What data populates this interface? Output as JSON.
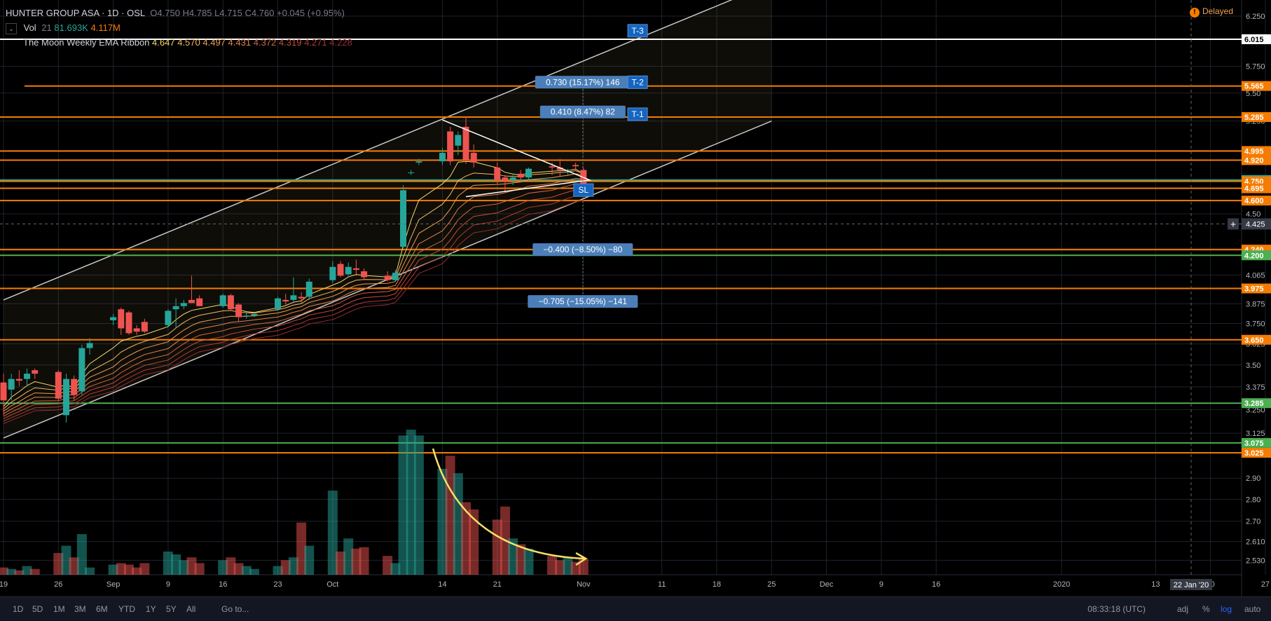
{
  "header": {
    "symbol": "HUNTER GROUP ASA · 1D · OSL",
    "ohlc": "O4.750  H4.785  L4.715  C4.760  +0.045 (+0.95%)",
    "vol_label": "Vol",
    "vol_len": "21",
    "vol_val1": "81.693K",
    "vol_val2": "4.117M",
    "ema_label": "The Moon Weekly EMA Ribbon",
    "ema_vals": [
      "4.647",
      "4.570",
      "4.497",
      "4.431",
      "4.372",
      "4.319",
      "4.271",
      "4.228"
    ],
    "collapse": "⌄",
    "delayed_icon": "!",
    "delayed": "Delayed"
  },
  "bottom_toolbar": {
    "ranges": [
      "1D",
      "5D",
      "1M",
      "3M",
      "6M",
      "YTD",
      "1Y",
      "5Y",
      "All"
    ],
    "goto": "Go to...",
    "time": "08:33:18 (UTC)",
    "opts": [
      "adj",
      "%",
      "log",
      "auto"
    ],
    "icon": "gear-icon"
  },
  "colors": {
    "up": "#26a69a",
    "down": "#ef5350",
    "orange": "#f57c00",
    "green": "#4caf50",
    "label_blue": "#4c7fb9",
    "target_blue": "#1565c0",
    "arrow": "#f5e06a"
  },
  "chart_data": {
    "type": "candlestick",
    "symbol": "HUNTER GROUP ASA",
    "interval": "1D",
    "exchange": "OSL",
    "scale": "log",
    "y_range": [
      2.47,
      6.42
    ],
    "y_ticks": [
      6.25,
      5.75,
      5.5,
      5.25,
      5,
      4.75,
      4.5,
      4.25,
      4.065,
      3.875,
      3.75,
      3.625,
      3.5,
      3.375,
      3.25,
      3.125,
      2.9,
      2.8,
      2.7,
      2.61,
      2.53
    ],
    "x_ticks": [
      {
        "label": "19",
        "date": "2019-08-19"
      },
      {
        "label": "26",
        "date": "2019-08-26"
      },
      {
        "label": "Sep",
        "date": "2019-09-02"
      },
      {
        "label": "9",
        "date": "2019-09-09"
      },
      {
        "label": "16",
        "date": "2019-09-16"
      },
      {
        "label": "23",
        "date": "2019-09-23"
      },
      {
        "label": "Oct",
        "date": "2019-09-30"
      },
      {
        "label": "14",
        "date": "2019-10-14"
      },
      {
        "label": "21",
        "date": "2019-10-21"
      },
      {
        "label": "Nov",
        "date": "2019-11-01"
      },
      {
        "label": "11",
        "date": "2019-11-11"
      },
      {
        "label": "18",
        "date": "2019-11-18"
      },
      {
        "label": "25",
        "date": "2019-11-25"
      },
      {
        "label": "Dec",
        "date": "2019-12-02"
      },
      {
        "label": "9",
        "date": "2019-12-09"
      },
      {
        "label": "16",
        "date": "2019-12-16"
      },
      {
        "label": "2020",
        "date": "2020-01-01"
      },
      {
        "label": "13",
        "date": "2020-01-13"
      },
      {
        "label": "20",
        "date": "2020-01-20"
      },
      {
        "label": "27",
        "date": "2020-01-27"
      }
    ],
    "cursor_date": "22 Jan '20",
    "cursor_price": "4.425",
    "candles": [
      {
        "date": "2019-08-19",
        "o": 3.4,
        "h": 3.45,
        "l": 3.22,
        "c": 3.3
      },
      {
        "date": "2019-08-20",
        "o": 3.36,
        "h": 3.45,
        "l": 3.3,
        "c": 3.42
      },
      {
        "date": "2019-08-21",
        "o": 3.42,
        "h": 3.47,
        "l": 3.38,
        "c": 3.41
      },
      {
        "date": "2019-08-22",
        "o": 3.42,
        "h": 3.48,
        "l": 3.38,
        "c": 3.45
      },
      {
        "date": "2019-08-23",
        "o": 3.47,
        "h": 3.48,
        "l": 3.42,
        "c": 3.45
      },
      {
        "date": "2019-08-26",
        "o": 3.46,
        "h": 3.47,
        "l": 3.3,
        "c": 3.31
      },
      {
        "date": "2019-08-27",
        "o": 3.22,
        "h": 3.45,
        "l": 3.18,
        "c": 3.42
      },
      {
        "date": "2019-08-28",
        "o": 3.42,
        "h": 3.44,
        "l": 3.3,
        "c": 3.33
      },
      {
        "date": "2019-08-29",
        "o": 3.35,
        "h": 3.62,
        "l": 3.33,
        "c": 3.6
      },
      {
        "date": "2019-08-30",
        "o": 3.6,
        "h": 3.66,
        "l": 3.56,
        "c": 3.63
      },
      {
        "date": "2019-09-02",
        "o": 3.77,
        "h": 3.81,
        "l": 3.74,
        "c": 3.79
      },
      {
        "date": "2019-09-03",
        "o": 3.84,
        "h": 3.85,
        "l": 3.68,
        "c": 3.72
      },
      {
        "date": "2019-09-04",
        "o": 3.82,
        "h": 3.83,
        "l": 3.68,
        "c": 3.69
      },
      {
        "date": "2019-09-05",
        "o": 3.72,
        "h": 3.74,
        "l": 3.68,
        "c": 3.7
      },
      {
        "date": "2019-09-06",
        "o": 3.76,
        "h": 3.78,
        "l": 3.69,
        "c": 3.7
      },
      {
        "date": "2019-09-09",
        "o": 3.74,
        "h": 3.84,
        "l": 3.73,
        "c": 3.83
      },
      {
        "date": "2019-09-10",
        "o": 3.84,
        "h": 3.91,
        "l": 3.72,
        "c": 3.86
      },
      {
        "date": "2019-09-11",
        "o": 3.86,
        "h": 3.9,
        "l": 3.84,
        "c": 3.88
      },
      {
        "date": "2019-09-12",
        "o": 3.9,
        "h": 4.06,
        "l": 3.88,
        "c": 3.88
      },
      {
        "date": "2019-09-13",
        "o": 3.91,
        "h": 3.93,
        "l": 3.86,
        "c": 3.86
      },
      {
        "date": "2019-09-16",
        "o": 3.86,
        "h": 3.94,
        "l": 3.85,
        "c": 3.93
      },
      {
        "date": "2019-09-17",
        "o": 3.93,
        "h": 3.94,
        "l": 3.83,
        "c": 3.84
      },
      {
        "date": "2019-09-18",
        "o": 3.87,
        "h": 3.88,
        "l": 3.76,
        "c": 3.79
      },
      {
        "date": "2019-09-19",
        "o": 3.8,
        "h": 3.82,
        "l": 3.78,
        "c": 3.8
      },
      {
        "date": "2019-09-20",
        "o": 3.8,
        "h": 3.82,
        "l": 3.79,
        "c": 3.81
      },
      {
        "date": "2019-09-23",
        "o": 3.84,
        "h": 3.92,
        "l": 3.83,
        "c": 3.91
      },
      {
        "date": "2019-09-24",
        "o": 3.9,
        "h": 3.94,
        "l": 3.87,
        "c": 3.89
      },
      {
        "date": "2019-09-25",
        "o": 3.9,
        "h": 4.05,
        "l": 3.88,
        "c": 3.93
      },
      {
        "date": "2019-09-26",
        "o": 3.92,
        "h": 3.95,
        "l": 3.88,
        "c": 3.91
      },
      {
        "date": "2019-09-27",
        "o": 3.92,
        "h": 4.04,
        "l": 3.9,
        "c": 4.02
      },
      {
        "date": "2019-09-30",
        "o": 4.03,
        "h": 4.16,
        "l": 4.01,
        "c": 4.12
      },
      {
        "date": "2019-10-01",
        "o": 4.14,
        "h": 4.16,
        "l": 4.05,
        "c": 4.06
      },
      {
        "date": "2019-10-02",
        "o": 4.07,
        "h": 4.15,
        "l": 4.06,
        "c": 4.12
      },
      {
        "date": "2019-10-03",
        "o": 4.11,
        "h": 4.17,
        "l": 4.06,
        "c": 4.1
      },
      {
        "date": "2019-10-04",
        "o": 4.09,
        "h": 4.11,
        "l": 4.03,
        "c": 4.05
      },
      {
        "date": "2019-10-07",
        "o": 4.06,
        "h": 4.09,
        "l": 4.02,
        "c": 4.03
      },
      {
        "date": "2019-10-08",
        "o": 4.03,
        "h": 4.1,
        "l": 4.02,
        "c": 4.08
      },
      {
        "date": "2019-10-09",
        "o": 4.26,
        "h": 4.72,
        "l": 4.25,
        "c": 4.68
      },
      {
        "date": "2019-10-10",
        "o": 4.82,
        "h": 4.84,
        "l": 4.8,
        "c": 4.82
      },
      {
        "date": "2019-10-11",
        "o": 4.9,
        "h": 4.93,
        "l": 4.88,
        "c": 4.91
      },
      {
        "date": "2019-10-14",
        "o": 4.91,
        "h": 5.02,
        "l": 4.88,
        "c": 4.98
      },
      {
        "date": "2019-10-15",
        "o": 5.16,
        "h": 5.2,
        "l": 4.88,
        "c": 4.91
      },
      {
        "date": "2019-10-16",
        "o": 5.04,
        "h": 5.16,
        "l": 4.96,
        "c": 5.13
      },
      {
        "date": "2019-10-17",
        "o": 5.2,
        "h": 5.29,
        "l": 4.89,
        "c": 4.92
      },
      {
        "date": "2019-10-18",
        "o": 4.98,
        "h": 5.05,
        "l": 4.86,
        "c": 4.9
      },
      {
        "date": "2019-10-21",
        "o": 4.86,
        "h": 4.9,
        "l": 4.73,
        "c": 4.76
      },
      {
        "date": "2019-10-22",
        "o": 4.78,
        "h": 4.8,
        "l": 4.66,
        "c": 4.75
      },
      {
        "date": "2019-10-23",
        "o": 4.76,
        "h": 4.8,
        "l": 4.72,
        "c": 4.78
      },
      {
        "date": "2019-10-24",
        "o": 4.81,
        "h": 4.84,
        "l": 4.74,
        "c": 4.78
      },
      {
        "date": "2019-10-25",
        "o": 4.78,
        "h": 4.86,
        "l": 4.76,
        "c": 4.85
      },
      {
        "date": "2019-10-28",
        "o": 4.87,
        "h": 4.9,
        "l": 4.8,
        "c": 4.86
      },
      {
        "date": "2019-10-29",
        "o": 4.86,
        "h": 4.93,
        "l": 4.79,
        "c": 4.84
      },
      {
        "date": "2019-10-30",
        "o": 4.84,
        "h": 4.85,
        "l": 4.8,
        "c": 4.84
      },
      {
        "date": "2019-10-31",
        "o": 4.88,
        "h": 4.9,
        "l": 4.83,
        "c": 4.87
      },
      {
        "date": "2019-11-01",
        "o": 4.84,
        "h": 4.86,
        "l": 4.71,
        "c": 4.73
      }
    ],
    "volume_relative": [
      0.05,
      0.04,
      0.03,
      0.06,
      0.04,
      0.15,
      0.2,
      0.12,
      0.28,
      0.05,
      0.07,
      0.08,
      0.07,
      0.05,
      0.08,
      0.16,
      0.14,
      0.1,
      0.12,
      0.08,
      0.1,
      0.12,
      0.08,
      0.06,
      0.04,
      0.06,
      0.1,
      0.12,
      0.36,
      0.2,
      0.58,
      0.16,
      0.25,
      0.18,
      0.19,
      0.13,
      0.08,
      0.96,
      1.0,
      0.96,
      0.73,
      0.82,
      0.7,
      0.5,
      0.45,
      0.38,
      0.47,
      0.25,
      0.21,
      0.18,
      0.13,
      0.1,
      0.12,
      0.09,
      0.11
    ],
    "horizontal_levels": [
      {
        "price": 6.015,
        "label": "6.015",
        "color": "#ffffff"
      },
      {
        "price": 5.565,
        "label": "5.565",
        "color": "#f57c00"
      },
      {
        "price": 5.285,
        "label": "5.285",
        "color": "#f57c00"
      },
      {
        "price": 4.995,
        "label": "4.995",
        "color": "#f57c00"
      },
      {
        "price": 4.92,
        "label": "4.920",
        "color": "#f57c00"
      },
      {
        "price": 4.76,
        "label": "4.760",
        "color": "#26a69a"
      },
      {
        "price": 4.75,
        "label": "4.750",
        "color": "#f57c00"
      },
      {
        "price": 4.695,
        "label": "4.695",
        "color": "#f57c00"
      },
      {
        "price": 4.6,
        "label": "4.600",
        "color": "#f57c00"
      },
      {
        "price": 4.24,
        "label": "4.240",
        "color": "#f57c00"
      },
      {
        "price": 4.2,
        "label": "4.200",
        "color": "#4caf50"
      },
      {
        "price": 3.975,
        "label": "3.975",
        "color": "#f57c00"
      },
      {
        "price": 3.65,
        "label": "3.650",
        "color": "#f57c00"
      },
      {
        "price": 3.285,
        "label": "3.285",
        "color": "#4caf50"
      },
      {
        "price": 3.075,
        "label": "3.075",
        "color": "#4caf50"
      },
      {
        "price": 3.025,
        "label": "3.025",
        "color": "#f57c00"
      }
    ],
    "targets": [
      {
        "label": "T-3",
        "price": 6.1
      },
      {
        "label": "T-2",
        "price": 5.6
      },
      {
        "label": "T-1",
        "price": 5.31
      },
      {
        "label": "SL",
        "price": 4.6
      }
    ],
    "measurements": [
      {
        "text": "0.730 (15.17%) 146",
        "price": 5.6
      },
      {
        "text": "0.410 (8.47%) 82",
        "price": 5.33
      },
      {
        "text": "−0.400 (−8.50%) −80",
        "price": 4.24
      },
      {
        "text": "−0.705 (−15.05%) −141",
        "price": 3.89
      }
    ],
    "channel": {
      "lower": [
        {
          "date": "2019-08-19",
          "price": 3.1
        },
        {
          "date": "2019-11-25",
          "price": 5.25
        }
      ],
      "upper": [
        {
          "date": "2019-08-19",
          "price": 3.9
        },
        {
          "date": "2019-11-25",
          "price": 6.6
        }
      ]
    },
    "triangle": [
      {
        "date": "2019-10-14",
        "price": 5.26
      },
      {
        "date": "2019-10-31",
        "price": 4.76
      },
      {
        "date": "2019-10-17",
        "price": 4.63
      }
    ]
  }
}
